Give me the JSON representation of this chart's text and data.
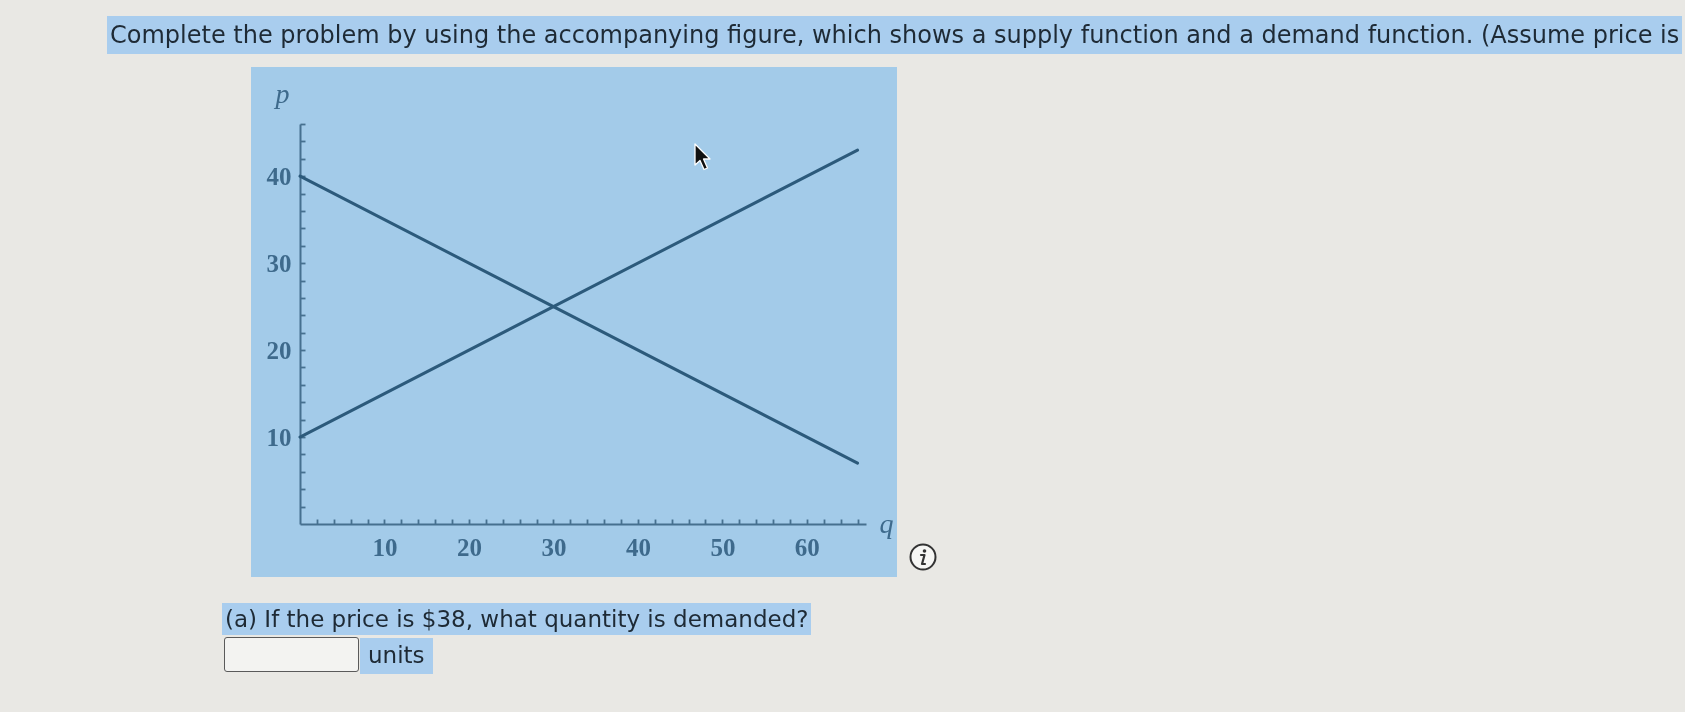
{
  "chart_data": {
    "type": "line",
    "title": "Complete the problem by using the accompanying figure, which shows a supply function and a demand function. (Assume price is",
    "xlabel": "q",
    "ylabel": "p",
    "annotations": [
      "(a) If the price is $38, what quantity is demanded?",
      "units"
    ],
    "x": [
      0,
      66
    ],
    "series": [
      {
        "color": "#2c5a7b",
        "values": [
          40,
          7
        ]
      },
      {
        "color": "#2c5a7b",
        "values": [
          10,
          43
        ]
      }
    ],
    "xlim": [
      0,
      67
    ],
    "ylim": [
      0,
      46
    ],
    "xticks": [
      {
        "value": 2,
        "label": null
      },
      {
        "value": 4,
        "label": null
      },
      {
        "value": 6,
        "label": null
      },
      {
        "value": 8,
        "label": null
      },
      10,
      {
        "value": 12,
        "label": null
      },
      {
        "value": 14,
        "label": null
      },
      {
        "value": 16,
        "label": null
      },
      {
        "value": 18,
        "label": null
      },
      20,
      {
        "value": 22,
        "label": null
      },
      {
        "value": 24,
        "label": null
      },
      {
        "value": 26,
        "label": null
      },
      {
        "value": 28,
        "label": null
      },
      30,
      {
        "value": 32,
        "label": null
      },
      {
        "value": 34,
        "label": null
      },
      {
        "value": 36,
        "label": null
      },
      {
        "value": 38,
        "label": null
      },
      40,
      {
        "value": 42,
        "label": null
      },
      {
        "value": 44,
        "label": null
      },
      {
        "value": 46,
        "label": null
      },
      {
        "value": 48,
        "label": null
      },
      50,
      {
        "value": 52,
        "label": null
      },
      {
        "value": 54,
        "label": null
      },
      {
        "value": 56,
        "label": null
      },
      {
        "value": 58,
        "label": null
      },
      60,
      {
        "value": 62,
        "label": null
      },
      {
        "value": 64,
        "label": null
      },
      {
        "value": 66,
        "label": null
      }
    ],
    "yticks": [
      {
        "value": 2,
        "label": null
      },
      {
        "value": 4,
        "label": null
      },
      {
        "value": 6,
        "label": null
      },
      {
        "value": 8,
        "label": null
      },
      10,
      {
        "value": 12,
        "label": null
      },
      {
        "value": 14,
        "label": null
      },
      {
        "value": 16,
        "label": null
      },
      {
        "value": 18,
        "label": null
      },
      20,
      {
        "value": 22,
        "label": null
      },
      {
        "value": 24,
        "label": null
      },
      {
        "value": 26,
        "label": null
      },
      {
        "value": 28,
        "label": null
      },
      30,
      {
        "value": 32,
        "label": null
      },
      {
        "value": 34,
        "label": null
      },
      {
        "value": 36,
        "label": null
      },
      {
        "value": 38,
        "label": null
      },
      40,
      {
        "value": 42,
        "label": null
      },
      {
        "value": 44,
        "label": null
      },
      {
        "value": 46,
        "label": null
      }
    ],
    "line_style": "solid"
  }
}
